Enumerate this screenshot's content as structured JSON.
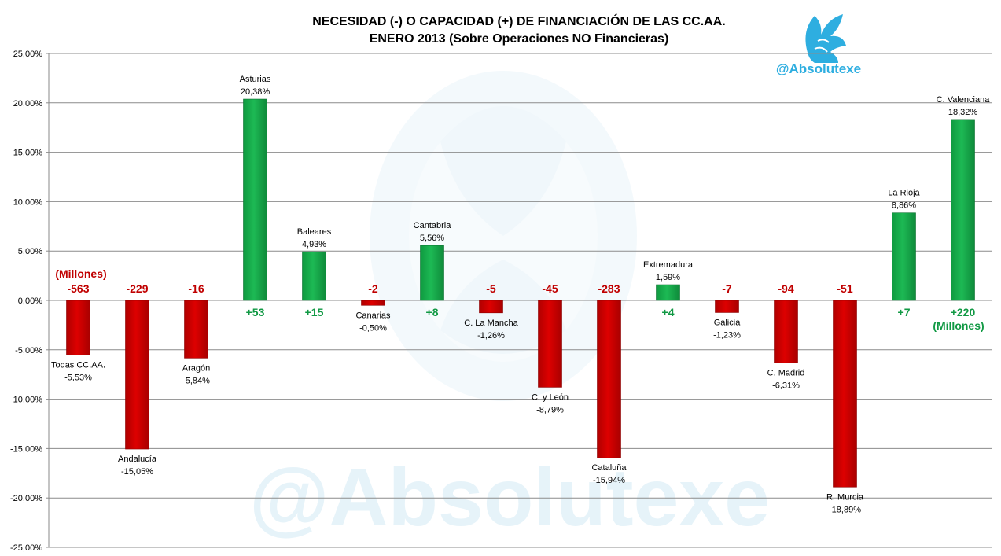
{
  "chart_data": {
    "type": "bar",
    "title": "NECESIDAD (-) O CAPACIDAD (+) DE FINANCIACIÓN DE LAS CC.AA.",
    "subtitle": "ENERO 2013 (Sobre Operaciones NO Financieras)",
    "ylim": [
      -25,
      25
    ],
    "y_ticks": [
      25,
      20,
      15,
      10,
      5,
      0,
      -5,
      -10,
      -15,
      -20,
      -25
    ],
    "y_tick_labels": [
      "25,00%",
      "20,00%",
      "15,00%",
      "10,00%",
      "5,00%",
      "0,00%",
      "-5,00%",
      "-10,00%",
      "-15,00%",
      "-20,00%",
      "-25,00%"
    ],
    "grid": true,
    "legend": "none",
    "categories": [
      "Todas CC.AA.",
      "Andalucía",
      "Aragón",
      "Asturias",
      "Baleares",
      "Canarias",
      "Cantabria",
      "C. La Mancha",
      "C. y León",
      "Cataluña",
      "Extremadura",
      "Galicia",
      "C. Madrid",
      "R. Murcia",
      "La Rioja",
      "C. Valenciana"
    ],
    "values": [
      -5.53,
      -15.05,
      -5.84,
      20.38,
      4.93,
      -0.5,
      5.56,
      -1.26,
      -8.79,
      -15.94,
      1.59,
      -1.23,
      -6.31,
      -18.89,
      8.86,
      18.32
    ],
    "value_labels": [
      "-5,53%",
      "-15,05%",
      "-5,84%",
      "20,38%",
      "4,93%",
      "-0,50%",
      "5,56%",
      "-1,26%",
      "-8,79%",
      "-15,94%",
      "1,59%",
      "-1,23%",
      "-6,31%",
      "-18,89%",
      "8,86%",
      "18,32%"
    ],
    "millions_labels": [
      "-563",
      "-229",
      "-16",
      "+53",
      "+15",
      "-2",
      "+8",
      "-5",
      "-45",
      "-283",
      "+4",
      "-7",
      "-94",
      "-51",
      "+7",
      "+220"
    ],
    "millions_unit_negative": "(Millones)",
    "millions_unit_positive": "(Millones)",
    "colors": {
      "negative_bar": "#dd0000",
      "positive_bar": "#1db954",
      "negative_text": "#c00000",
      "positive_text": "#119944",
      "handle": "#2eaee0",
      "watermark": "#e6f3f9"
    }
  },
  "brand": {
    "handle": "@Absolutexe",
    "watermark_text": "@Absolutexe"
  }
}
